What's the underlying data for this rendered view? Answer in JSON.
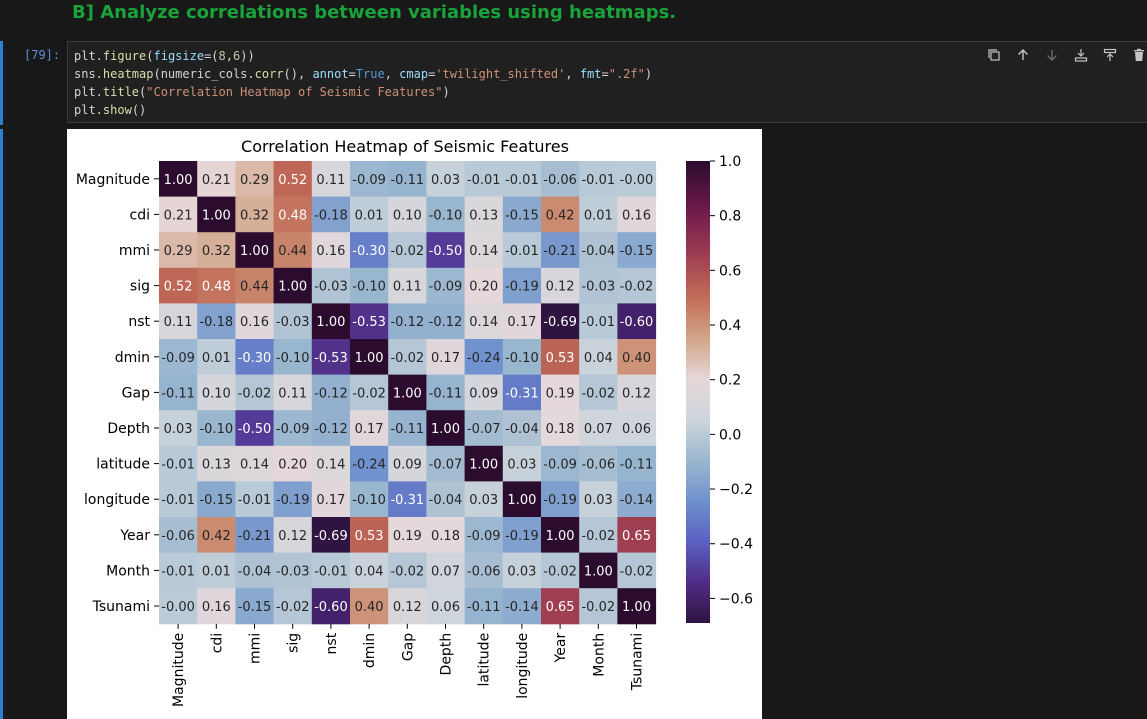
{
  "markdown": {
    "heading": "B] Analyze correlations between variables using heatmaps."
  },
  "cell": {
    "execution_count": "[79]:",
    "code_lines": [
      "plt.figure(figsize=(8,6))",
      "sns.heatmap(numeric_cols.corr(), annot=True, cmap='twilight_shifted', fmt=\".2f\")",
      "plt.title(\"Correlation Heatmap of Seismic Features\")",
      "plt.show()"
    ],
    "toolbar": [
      "copy-icon",
      "arrow-up-icon",
      "arrow-down-icon",
      "insert-below-icon",
      "split-cell-icon",
      "trash-icon"
    ]
  },
  "chart_data": {
    "type": "heatmap",
    "title": "Correlation Heatmap of Seismic Features",
    "labels": [
      "Magnitude",
      "cdi",
      "mmi",
      "sig",
      "nst",
      "dmin",
      "Gap",
      "Depth",
      "latitude",
      "longitude",
      "Year",
      "Month",
      "Tsunami"
    ],
    "values": [
      [
        1.0,
        0.21,
        0.29,
        0.52,
        0.11,
        -0.09,
        -0.11,
        0.03,
        -0.01,
        -0.01,
        -0.06,
        -0.01,
        -0.0
      ],
      [
        0.21,
        1.0,
        0.32,
        0.48,
        -0.18,
        0.01,
        0.1,
        -0.1,
        0.13,
        -0.15,
        0.42,
        0.01,
        0.16
      ],
      [
        0.29,
        0.32,
        1.0,
        0.44,
        0.16,
        -0.3,
        -0.02,
        -0.5,
        0.14,
        -0.01,
        -0.21,
        -0.04,
        -0.15
      ],
      [
        0.52,
        0.48,
        0.44,
        1.0,
        -0.03,
        -0.1,
        0.11,
        -0.09,
        0.2,
        -0.19,
        0.12,
        -0.03,
        -0.02
      ],
      [
        0.11,
        -0.18,
        0.16,
        -0.03,
        1.0,
        -0.53,
        -0.12,
        -0.12,
        0.14,
        0.17,
        -0.69,
        -0.01,
        -0.6
      ],
      [
        -0.09,
        0.01,
        -0.3,
        -0.1,
        -0.53,
        1.0,
        -0.02,
        0.17,
        -0.24,
        -0.1,
        0.53,
        0.04,
        0.4
      ],
      [
        -0.11,
        0.1,
        -0.02,
        0.11,
        -0.12,
        -0.02,
        1.0,
        -0.11,
        0.09,
        -0.31,
        0.19,
        -0.02,
        0.12
      ],
      [
        0.03,
        -0.1,
        -0.5,
        -0.09,
        -0.12,
        0.17,
        -0.11,
        1.0,
        -0.07,
        -0.04,
        0.18,
        0.07,
        0.06
      ],
      [
        -0.01,
        0.13,
        0.14,
        0.2,
        0.14,
        -0.24,
        0.09,
        -0.07,
        1.0,
        0.03,
        -0.09,
        -0.06,
        -0.11
      ],
      [
        -0.01,
        -0.15,
        -0.01,
        -0.19,
        0.17,
        -0.1,
        -0.31,
        -0.04,
        0.03,
        1.0,
        -0.19,
        0.03,
        -0.14
      ],
      [
        -0.06,
        0.42,
        -0.21,
        0.12,
        -0.69,
        0.53,
        0.19,
        0.18,
        -0.09,
        -0.19,
        1.0,
        -0.02,
        0.65
      ],
      [
        -0.01,
        0.01,
        -0.04,
        -0.03,
        -0.01,
        0.04,
        -0.02,
        0.07,
        -0.06,
        0.03,
        -0.02,
        1.0,
        -0.02
      ],
      [
        -0.0,
        0.16,
        -0.15,
        -0.02,
        -0.6,
        0.4,
        0.12,
        0.06,
        -0.11,
        -0.14,
        0.65,
        -0.02,
        1.0
      ]
    ],
    "vmin": -0.69,
    "vmax": 1.0,
    "colorbar_ticks": [
      1.0,
      0.8,
      0.6,
      0.4,
      0.2,
      0.0,
      -0.2,
      -0.4,
      -0.6
    ],
    "colormap": "twilight_shifted",
    "colormap_stops": [
      [
        -0.69,
        "#2f1442"
      ],
      [
        -0.55,
        "#4f2a82"
      ],
      [
        -0.4,
        "#5b5ec0"
      ],
      [
        -0.25,
        "#6d8fce"
      ],
      [
        -0.1,
        "#99b6cf"
      ],
      [
        0.05,
        "#cdd5dc"
      ],
      [
        0.2,
        "#e6d8da"
      ],
      [
        0.35,
        "#d2a588"
      ],
      [
        0.5,
        "#c26d57"
      ],
      [
        0.65,
        "#a13f52"
      ],
      [
        0.82,
        "#6e1a4a"
      ],
      [
        1.0,
        "#2b0c2e"
      ]
    ]
  }
}
